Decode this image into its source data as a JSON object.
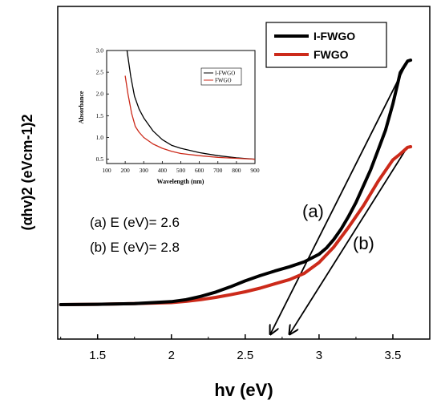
{
  "chart_data": [
    {
      "type": "line",
      "xlabel": "hv (eV)",
      "ylabel": "(αhv)2 (eVcm-1)2",
      "xlim": [
        1.23,
        3.75
      ],
      "x_ticks": [
        "1.5",
        "2",
        "2.5",
        "3",
        "3.5"
      ],
      "y_ticks": [],
      "colors": {
        "i_fwgo": "#000000",
        "fwgo": "#cc2a1a"
      },
      "legend": {
        "position": "top-right",
        "entries": [
          "I-FWGO",
          "FWGO"
        ]
      },
      "series": [
        {
          "name": "I-FWGO",
          "x": [
            1.25,
            1.5,
            1.75,
            2.0,
            2.1,
            2.2,
            2.3,
            2.4,
            2.5,
            2.6,
            2.7,
            2.8,
            2.9,
            3.0,
            3.05,
            3.1,
            3.15,
            3.2,
            3.25,
            3.3,
            3.35,
            3.4,
            3.45,
            3.5,
            3.55,
            3.6,
            3.62
          ],
          "y": [
            0,
            0.1,
            0.3,
            0.9,
            1.5,
            2.5,
            3.8,
            5.4,
            7.2,
            8.8,
            10.2,
            11.5,
            13.0,
            15.3,
            17.2,
            19.8,
            23.0,
            26.8,
            31.0,
            36.0,
            41.0,
            47.0,
            53.0,
            61.0,
            70.5,
            74.0,
            74.3
          ]
        },
        {
          "name": "FWGO",
          "x": [
            1.25,
            1.5,
            1.75,
            2.0,
            2.1,
            2.2,
            2.3,
            2.4,
            2.5,
            2.6,
            2.7,
            2.8,
            2.9,
            3.0,
            3.1,
            3.2,
            3.3,
            3.4,
            3.5,
            3.55,
            3.6,
            3.62
          ],
          "y": [
            0,
            0.1,
            0.3,
            0.6,
            1.0,
            1.5,
            2.2,
            3.0,
            3.9,
            5.0,
            6.3,
            7.6,
            9.5,
            12.8,
            17.5,
            23.5,
            30.0,
            37.5,
            44.0,
            45.8,
            47.8,
            48.0
          ]
        }
      ],
      "tangent_lines": [
        {
          "label": "(a)",
          "from": [
            3.6,
            74.0
          ],
          "to": [
            2.67,
            -9.0
          ]
        },
        {
          "label": "(b)",
          "from": [
            3.6,
            48.0
          ],
          "to": [
            2.8,
            -9.0
          ]
        }
      ],
      "annotations": [
        "(a) E (eV)= 2.6",
        "(b) E (eV)= 2.8",
        "(a)",
        "(b)"
      ]
    },
    {
      "type": "line",
      "xlabel": "Wavelength (nm)",
      "ylabel": "Absorbance",
      "xlim": [
        100,
        900
      ],
      "ylim": [
        0.4,
        3.0
      ],
      "x_ticks": [
        "100",
        "200",
        "300",
        "400",
        "500",
        "600",
        "700",
        "800",
        "900"
      ],
      "y_ticks": [
        "0.5",
        "1.0",
        "1.5",
        "2.0",
        "2.5",
        "3.0"
      ],
      "legend": {
        "position": "top-right",
        "entries": [
          "I-FWGO",
          "FWGO"
        ]
      },
      "series": [
        {
          "name": "I-FWGO",
          "x": [
            210,
            230,
            250,
            275,
            300,
            350,
            400,
            450,
            500,
            600,
            700,
            800,
            900
          ],
          "y": [
            3.0,
            2.4,
            1.95,
            1.65,
            1.45,
            1.15,
            0.95,
            0.82,
            0.75,
            0.65,
            0.58,
            0.53,
            0.5
          ]
        },
        {
          "name": "FWGO",
          "x": [
            200,
            215,
            235,
            255,
            275,
            300,
            350,
            400,
            450,
            500,
            600,
            700,
            800,
            900
          ],
          "y": [
            2.42,
            2.0,
            1.55,
            1.25,
            1.12,
            1.0,
            0.85,
            0.75,
            0.68,
            0.63,
            0.58,
            0.54,
            0.52,
            0.5
          ]
        }
      ]
    }
  ]
}
